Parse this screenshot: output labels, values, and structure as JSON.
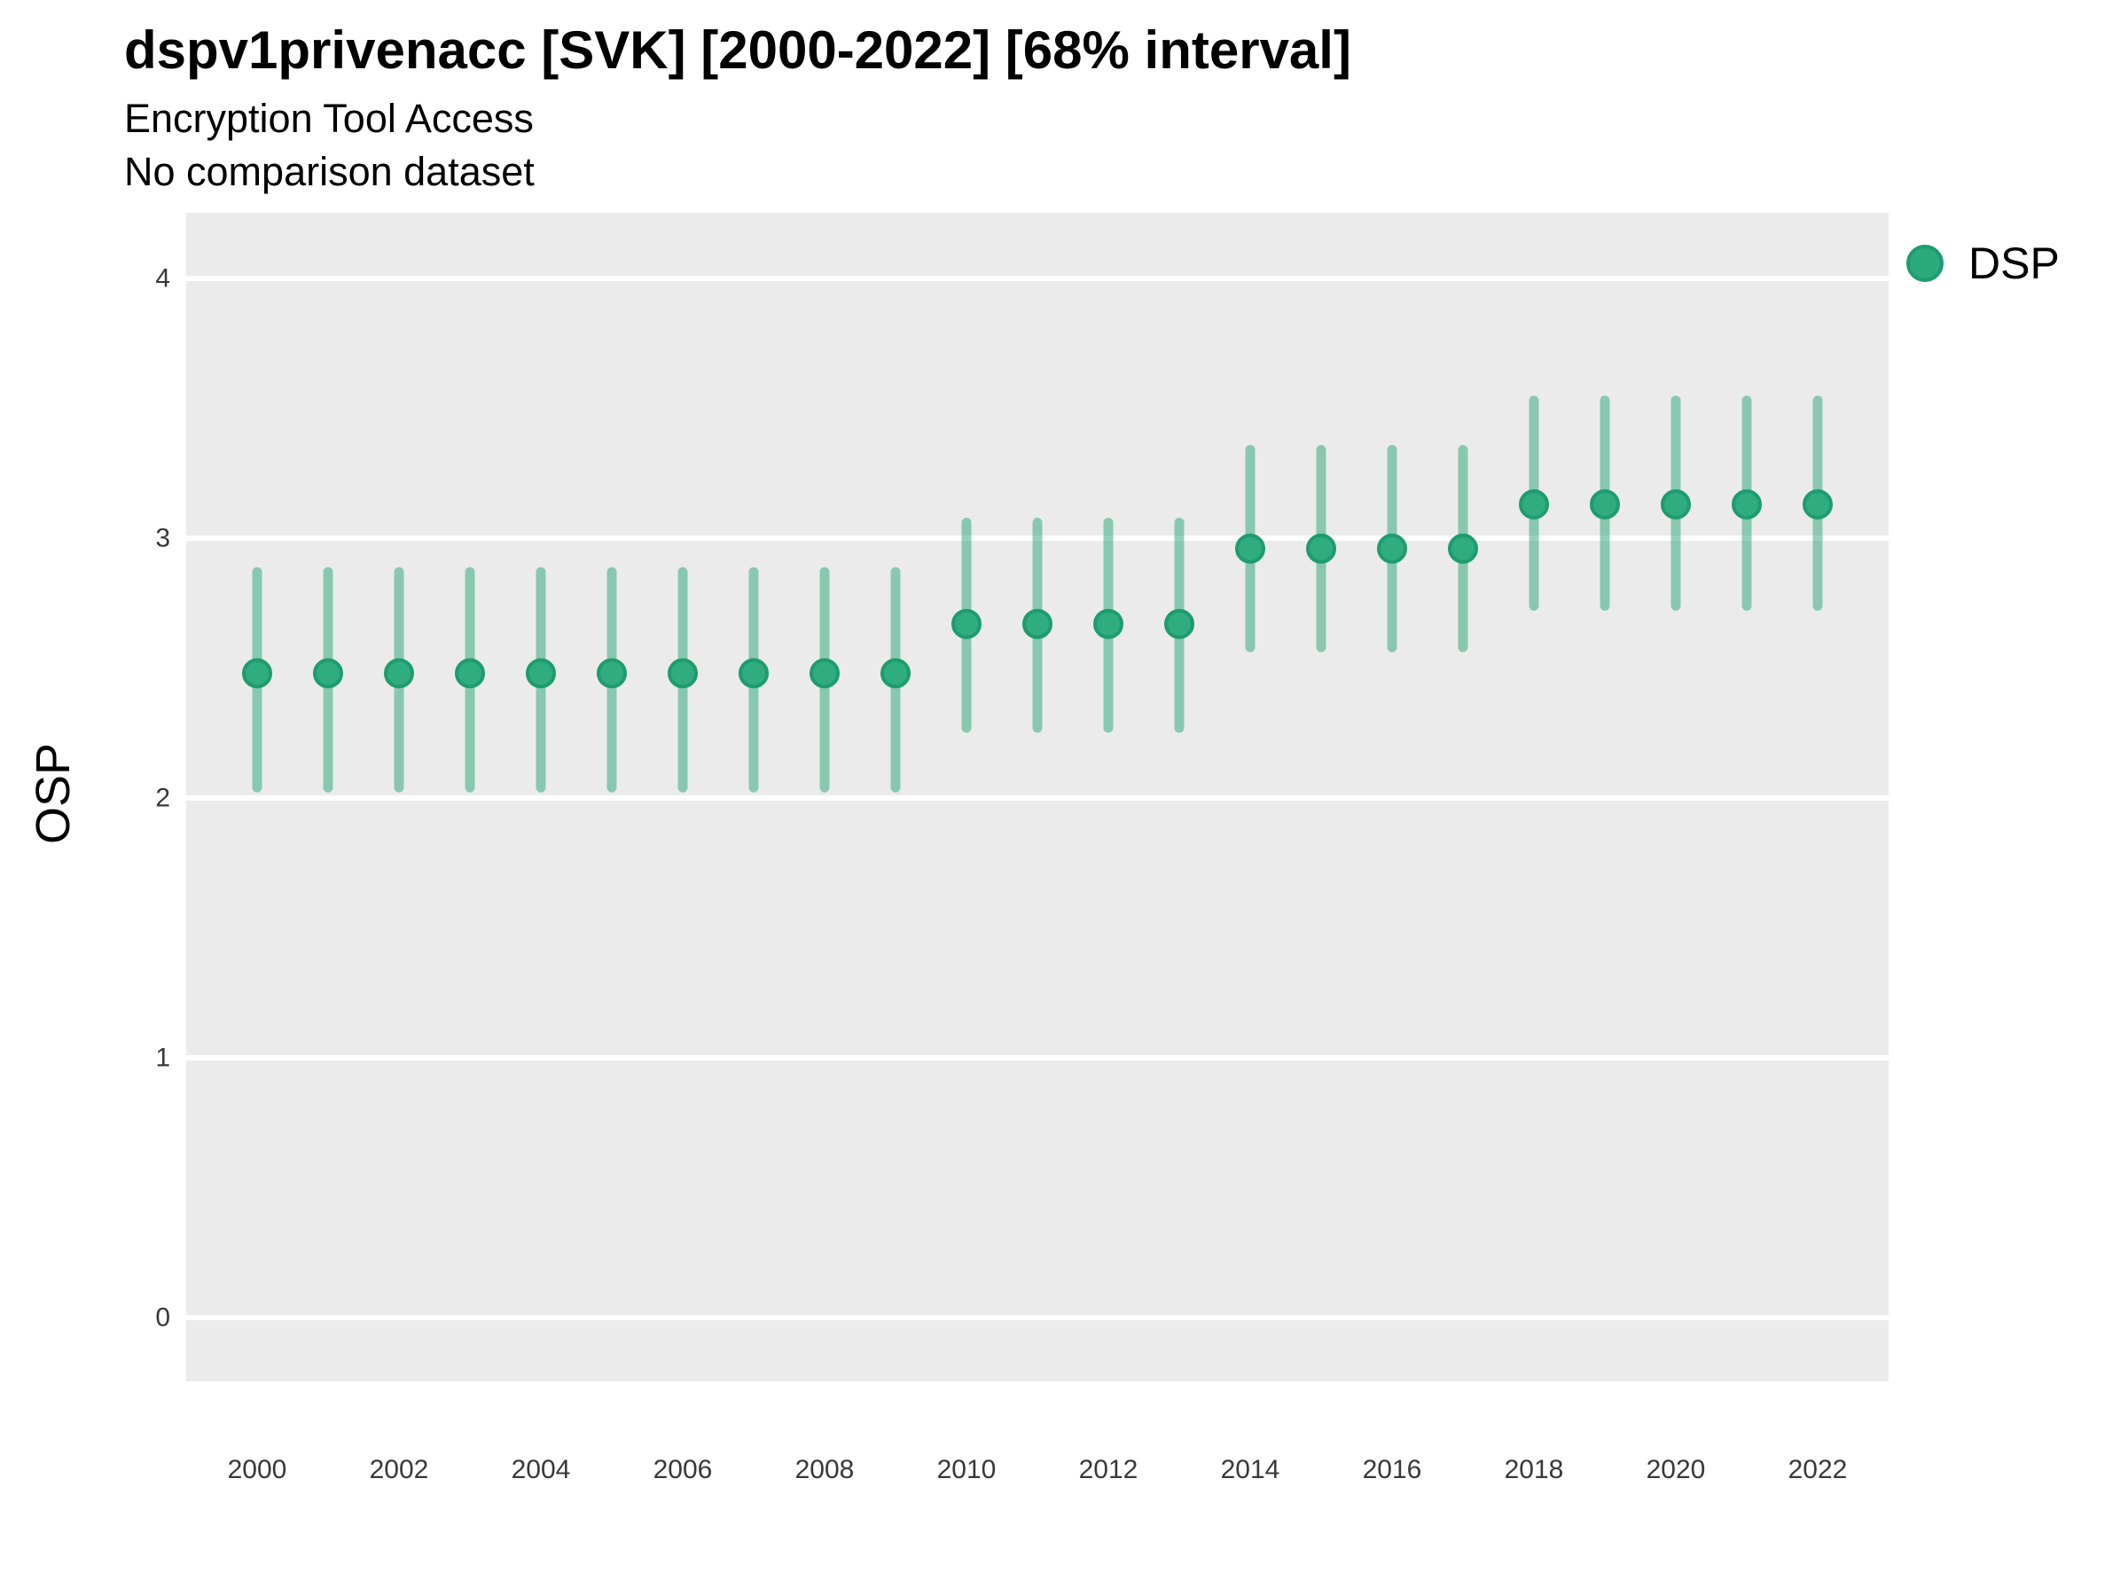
{
  "header": {
    "title": "dspv1privenacc [SVK] [2000-2022] [68% interval]",
    "subtitle": "Encryption Tool Access",
    "comparison_note": "No comparison dataset"
  },
  "y_axis_title": "OSP",
  "legend": {
    "position": "right",
    "items": [
      {
        "label": "DSP",
        "color": "#2BAA7E",
        "border": "#1E9C6F",
        "shape": "circle"
      }
    ]
  },
  "colors": {
    "panel_background": "#EBEBEB",
    "gridline": "#FFFFFF",
    "point_fill": "#2FAD81",
    "point_stroke": "#1E9C6F",
    "errorbar": "rgba(38,166,120,0.5)",
    "tick_label": "#383838",
    "page_background": "#FFFFFF"
  },
  "chart_data": {
    "type": "scatter",
    "subtype": "pointrange",
    "title": "dspv1privenacc [SVK] [2000-2022] [68% interval]",
    "subtitle": "Encryption Tool Access",
    "note": "No comparison dataset",
    "interval_level": "68%",
    "xlabel": "",
    "ylabel": "OSP",
    "grid": "major horizontal white gridlines on gray panel",
    "legend_position": "right",
    "ylim": [
      -0.25,
      4.25
    ],
    "yticks": [
      0,
      1,
      2,
      3,
      4
    ],
    "xticks": [
      2000,
      2002,
      2004,
      2006,
      2008,
      2010,
      2012,
      2014,
      2016,
      2018,
      2020,
      2022
    ],
    "series": [
      {
        "name": "DSP",
        "x": [
          2000,
          2001,
          2002,
          2003,
          2004,
          2005,
          2006,
          2007,
          2008,
          2009,
          2010,
          2011,
          2012,
          2013,
          2014,
          2015,
          2016,
          2017,
          2018,
          2019,
          2020,
          2021,
          2022
        ],
        "estimate": [
          2.48,
          2.48,
          2.48,
          2.48,
          2.48,
          2.48,
          2.48,
          2.48,
          2.48,
          2.48,
          2.67,
          2.67,
          2.67,
          2.67,
          2.96,
          2.96,
          2.96,
          2.96,
          3.13,
          3.13,
          3.13,
          3.13,
          3.13
        ],
        "lower": [
          2.04,
          2.04,
          2.04,
          2.04,
          2.04,
          2.04,
          2.04,
          2.04,
          2.04,
          2.04,
          2.27,
          2.27,
          2.27,
          2.27,
          2.58,
          2.58,
          2.58,
          2.58,
          2.74,
          2.74,
          2.74,
          2.74,
          2.74
        ],
        "upper": [
          2.87,
          2.87,
          2.87,
          2.87,
          2.87,
          2.87,
          2.87,
          2.87,
          2.87,
          2.87,
          3.06,
          3.06,
          3.06,
          3.06,
          3.34,
          3.34,
          3.34,
          3.34,
          3.53,
          3.53,
          3.53,
          3.53,
          3.53
        ]
      }
    ]
  }
}
